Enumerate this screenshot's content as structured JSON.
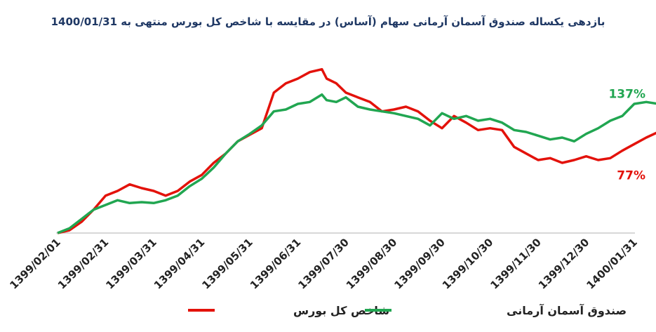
{
  "chart_data": {
    "type": "line",
    "title": "بازدهی یکساله صندوق آسمان آرمانی سهام (آساس) در مقایسه با شاخص کل بورس منتهی به 1400/01/31",
    "xlabel": "",
    "ylabel": "",
    "x_tick_labels": [
      "1399/02/01",
      "1399/02/31",
      "1399/03/31",
      "1399/04/31",
      "1399/05/31",
      "1399/06/31",
      "1399/07/30",
      "1399/08/30",
      "1399/09/30",
      "1399/10/30",
      "1399/11/30",
      "1399/12/30",
      "1400/01/31"
    ],
    "ylim": [
      0,
      180
    ],
    "grid": false,
    "legend_position": "bottom",
    "series": [
      {
        "name": "شاخص کل بورس",
        "color": "#e3120b",
        "end_label": "77%",
        "values": [
          [
            0,
            0
          ],
          [
            0.25,
            3
          ],
          [
            0.5,
            12
          ],
          [
            0.75,
            25
          ],
          [
            1,
            40
          ],
          [
            1.25,
            45
          ],
          [
            1.5,
            52
          ],
          [
            1.75,
            48
          ],
          [
            2,
            45
          ],
          [
            2.25,
            40
          ],
          [
            2.5,
            45
          ],
          [
            2.75,
            55
          ],
          [
            3,
            62
          ],
          [
            3.25,
            75
          ],
          [
            3.5,
            85
          ],
          [
            3.75,
            98
          ],
          [
            4,
            105
          ],
          [
            4.25,
            112
          ],
          [
            4.5,
            150
          ],
          [
            4.75,
            160
          ],
          [
            5,
            165
          ],
          [
            5.25,
            172
          ],
          [
            5.5,
            175
          ],
          [
            5.6,
            165
          ],
          [
            5.8,
            160
          ],
          [
            6,
            150
          ],
          [
            6.25,
            145
          ],
          [
            6.5,
            140
          ],
          [
            6.75,
            130
          ],
          [
            7,
            132
          ],
          [
            7.25,
            135
          ],
          [
            7.5,
            130
          ],
          [
            7.75,
            120
          ],
          [
            8,
            112
          ],
          [
            8.25,
            125
          ],
          [
            8.5,
            118
          ],
          [
            8.75,
            110
          ],
          [
            9,
            112
          ],
          [
            9.25,
            110
          ],
          [
            9.5,
            92
          ],
          [
            9.75,
            85
          ],
          [
            10,
            78
          ],
          [
            10.25,
            80
          ],
          [
            10.5,
            75
          ],
          [
            10.75,
            78
          ],
          [
            11,
            82
          ],
          [
            11.25,
            78
          ],
          [
            11.5,
            80
          ],
          [
            11.75,
            88
          ],
          [
            12,
            95
          ],
          [
            12.25,
            102
          ],
          [
            12.5,
            108
          ],
          [
            12.75,
            104
          ],
          [
            13,
            100
          ],
          [
            13.25,
            98
          ],
          [
            13.5,
            94
          ],
          [
            13.75,
            92
          ],
          [
            14,
            90
          ],
          [
            14.25,
            86
          ],
          [
            14.5,
            82
          ],
          [
            14.75,
            74
          ],
          [
            15,
            70
          ],
          [
            15.25,
            72
          ],
          [
            15.5,
            70
          ],
          [
            15.75,
            74
          ],
          [
            16,
            76
          ],
          [
            16.25,
            74
          ],
          [
            16.5,
            72
          ],
          [
            16.75,
            70
          ],
          [
            17,
            70
          ],
          [
            17.25,
            82
          ],
          [
            17.5,
            82
          ],
          [
            17.75,
            80
          ],
          [
            18,
            78
          ],
          [
            18.25,
            77
          ]
        ]
      },
      {
        "name": "صندوق آسمان آرمانی",
        "color": "#21a651",
        "end_label": "137%",
        "values": [
          [
            0,
            0
          ],
          [
            0.25,
            5
          ],
          [
            0.5,
            15
          ],
          [
            0.75,
            25
          ],
          [
            1,
            30
          ],
          [
            1.25,
            35
          ],
          [
            1.5,
            32
          ],
          [
            1.75,
            33
          ],
          [
            2,
            32
          ],
          [
            2.25,
            35
          ],
          [
            2.5,
            40
          ],
          [
            2.75,
            50
          ],
          [
            3,
            58
          ],
          [
            3.25,
            70
          ],
          [
            3.5,
            85
          ],
          [
            3.75,
            98
          ],
          [
            4,
            106
          ],
          [
            4.25,
            115
          ],
          [
            4.5,
            130
          ],
          [
            4.75,
            132
          ],
          [
            5,
            138
          ],
          [
            5.25,
            140
          ],
          [
            5.5,
            148
          ],
          [
            5.6,
            142
          ],
          [
            5.8,
            140
          ],
          [
            6,
            145
          ],
          [
            6.25,
            135
          ],
          [
            6.5,
            132
          ],
          [
            6.75,
            130
          ],
          [
            7,
            128
          ],
          [
            7.25,
            125
          ],
          [
            7.5,
            122
          ],
          [
            7.75,
            115
          ],
          [
            8,
            128
          ],
          [
            8.25,
            122
          ],
          [
            8.5,
            125
          ],
          [
            8.75,
            120
          ],
          [
            9,
            122
          ],
          [
            9.25,
            118
          ],
          [
            9.5,
            110
          ],
          [
            9.75,
            108
          ],
          [
            10,
            104
          ],
          [
            10.25,
            100
          ],
          [
            10.5,
            102
          ],
          [
            10.75,
            98
          ],
          [
            11,
            106
          ],
          [
            11.25,
            112
          ],
          [
            11.5,
            120
          ],
          [
            11.75,
            125
          ],
          [
            12,
            138
          ],
          [
            12.25,
            140
          ],
          [
            12.5,
            138
          ],
          [
            12.75,
            142
          ],
          [
            13,
            140
          ],
          [
            13.25,
            138
          ],
          [
            13.5,
            136
          ],
          [
            13.75,
            130
          ],
          [
            14,
            125
          ],
          [
            14.25,
            128
          ],
          [
            14.5,
            132
          ],
          [
            14.75,
            135
          ],
          [
            15,
            132
          ],
          [
            15.25,
            128
          ],
          [
            15.5,
            128
          ],
          [
            15.75,
            130
          ],
          [
            16,
            128
          ],
          [
            16.25,
            128
          ],
          [
            16.5,
            126
          ],
          [
            16.75,
            128
          ],
          [
            17,
            138
          ],
          [
            17.25,
            140
          ],
          [
            17.5,
            140
          ],
          [
            17.75,
            140
          ],
          [
            18,
            138
          ],
          [
            18.25,
            137
          ]
        ]
      }
    ]
  }
}
